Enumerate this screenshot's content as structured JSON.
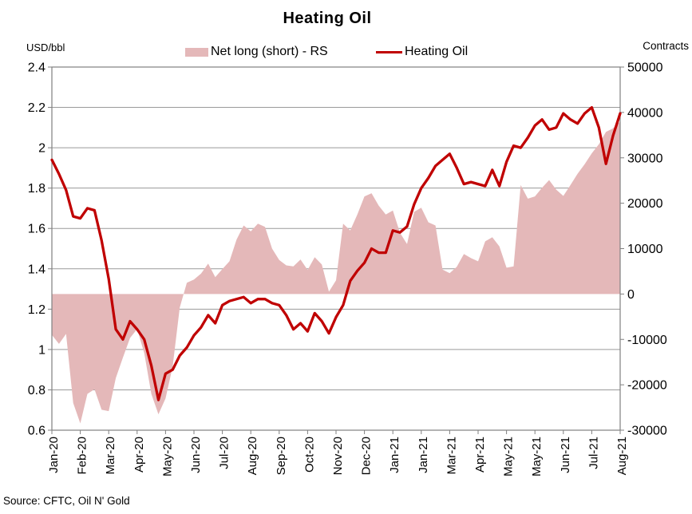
{
  "title": "Heating Oil",
  "left_axis": {
    "unit": "USD/bbl",
    "tick_labels": [
      "2.4",
      "2.2",
      "2",
      "1.8",
      "1.6",
      "1.4",
      "1.2",
      "1",
      "0.8",
      "0.6"
    ]
  },
  "right_axis": {
    "unit": "Contracts",
    "tick_labels": [
      "50000",
      "40000",
      "30000",
      "20000",
      "10000",
      "0",
      "-10000",
      "-20000",
      "-30000"
    ]
  },
  "legend": [
    {
      "label": "Net long (short) - RS",
      "type": "area",
      "color": "#e4b8b9"
    },
    {
      "label": "Heating Oil",
      "type": "line",
      "color": "#c00000"
    }
  ],
  "source": "Source: CFTC, Oil N' Gold",
  "colors": {
    "area_fill": "#e4b8b9",
    "line_stroke": "#c00000",
    "grid": "#9a9a9a",
    "axis_border": "#808080",
    "text": "#000000"
  },
  "chart_data": {
    "type": "line",
    "title": "Heating Oil",
    "frequency": "weekly",
    "x_tick_labels": [
      "Jan-20",
      "Feb-20",
      "Mar-20",
      "Apr-20",
      "May-20",
      "Jun-20",
      "Jul-20",
      "Aug-20",
      "Sep-20",
      "Oct-20",
      "Nov-20",
      "Dec-20",
      "Jan-21",
      "Jan-21",
      "Mar-21",
      "Apr-21",
      "May-21",
      "May-21",
      "Jun-21",
      "Jul-21",
      "Aug-21"
    ],
    "x_tick_positions_weeks": [
      0,
      4,
      8,
      12,
      16,
      20,
      24,
      28,
      32,
      36,
      40,
      44,
      48,
      52,
      56,
      60,
      64,
      68,
      72,
      76,
      80
    ],
    "n_points": 81,
    "left_ylim": [
      0.6,
      2.4
    ],
    "right_ylim": [
      -30000,
      50000
    ],
    "grid": "horizontal gridlines at left-axis ticks",
    "legend_position": "top",
    "series": [
      {
        "name": "Net long (short) - RS",
        "axis": "right",
        "style": "area",
        "unit": "Contracts",
        "values": [
          -9000,
          -11000,
          -8800,
          -24000,
          -28500,
          -22000,
          -21000,
          -25500,
          -25800,
          -18500,
          -14000,
          -9700,
          -7700,
          -13000,
          -22000,
          -26500,
          -23000,
          -16000,
          -3000,
          2500,
          3200,
          4500,
          6700,
          3700,
          5500,
          7200,
          12000,
          15100,
          13800,
          15500,
          14800,
          10000,
          7500,
          6300,
          6100,
          7600,
          5300,
          8100,
          6500,
          500,
          3000,
          15500,
          14000,
          17500,
          21500,
          22200,
          19500,
          17500,
          18400,
          13500,
          11000,
          18100,
          19000,
          15800,
          15100,
          5400,
          4600,
          6000,
          8800,
          7900,
          7200,
          11600,
          12500,
          10500,
          5800,
          6100,
          24000,
          21000,
          21500,
          23400,
          25100,
          23000,
          21600,
          24000,
          26500,
          28600,
          31000,
          33000,
          35700,
          36500,
          38000
        ]
      },
      {
        "name": "Heating Oil",
        "axis": "left",
        "style": "line",
        "unit": "USD/bbl",
        "values": [
          1.94,
          1.87,
          1.79,
          1.66,
          1.65,
          1.7,
          1.69,
          1.54,
          1.35,
          1.1,
          1.05,
          1.14,
          1.1,
          1.05,
          0.92,
          0.75,
          0.88,
          0.9,
          0.97,
          1.01,
          1.07,
          1.11,
          1.17,
          1.13,
          1.22,
          1.24,
          1.25,
          1.26,
          1.23,
          1.25,
          1.25,
          1.23,
          1.22,
          1.17,
          1.1,
          1.13,
          1.09,
          1.18,
          1.14,
          1.08,
          1.16,
          1.22,
          1.34,
          1.39,
          1.43,
          1.5,
          1.48,
          1.48,
          1.59,
          1.58,
          1.61,
          1.72,
          1.8,
          1.85,
          1.91,
          1.94,
          1.97,
          1.9,
          1.82,
          1.83,
          1.82,
          1.81,
          1.89,
          1.81,
          1.93,
          2.01,
          2.0,
          2.05,
          2.11,
          2.14,
          2.09,
          2.1,
          2.17,
          2.14,
          2.12,
          2.17,
          2.2,
          2.1,
          1.92,
          2.06,
          2.17
        ]
      }
    ]
  }
}
